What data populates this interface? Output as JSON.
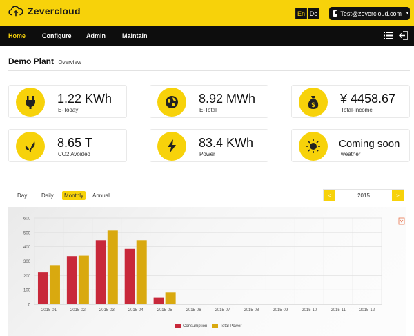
{
  "header": {
    "brand": "Zevercloud",
    "lang_en": "En",
    "lang_de": "De",
    "user": "Test@zevercloud.com"
  },
  "nav": {
    "items": [
      "Home",
      "Configure",
      "Admin",
      "Maintain"
    ],
    "active": "Home"
  },
  "page": {
    "title": "Demo Plant",
    "subtitle": "Overview"
  },
  "cards": [
    {
      "icon": "plug-icon",
      "value": "1.22 KWh",
      "label": "E-Today"
    },
    {
      "icon": "globe-icon",
      "value": "8.92 MWh",
      "label": "E-Total"
    },
    {
      "icon": "money-bag-icon",
      "value": "¥ 4458.67",
      "label": "Total-Income"
    },
    {
      "icon": "leaf-icon",
      "value": "8.65 T",
      "label": "CO2 Avoided"
    },
    {
      "icon": "lightning-icon",
      "value": "83.4 KWh",
      "label": "Power"
    },
    {
      "icon": "sun-icon",
      "value": "Coming soon",
      "label": "weather"
    }
  ],
  "period_tabs": [
    "Day",
    "Daily",
    "Monthly",
    "Annual"
  ],
  "active_tab": "Monthly",
  "year_selector": {
    "prev": "<",
    "year": "2015",
    "next": ">"
  },
  "colors": {
    "accent": "#f7d20a",
    "consumption": "#c8283a",
    "total_power": "#d9a90f"
  },
  "chart_data": {
    "type": "bar",
    "categories": [
      "2015-01",
      "2015-02",
      "2015-03",
      "2015-04",
      "2015-05",
      "2015-06",
      "2015-07",
      "2015-08",
      "2015-09",
      "2015-10",
      "2015-11",
      "2015-12"
    ],
    "series": [
      {
        "name": "Consumption",
        "values": [
          225,
          335,
          445,
          385,
          45,
          0,
          0,
          0,
          0,
          0,
          0,
          0
        ]
      },
      {
        "name": "Total Power",
        "values": [
          272,
          338,
          512,
          445,
          85,
          0,
          0,
          0,
          0,
          0,
          0,
          0
        ]
      }
    ],
    "yticks": [
      0,
      100,
      200,
      300,
      400,
      500,
      600
    ],
    "ylim": [
      0,
      600
    ],
    "legend": "bottom",
    "grid": true
  }
}
